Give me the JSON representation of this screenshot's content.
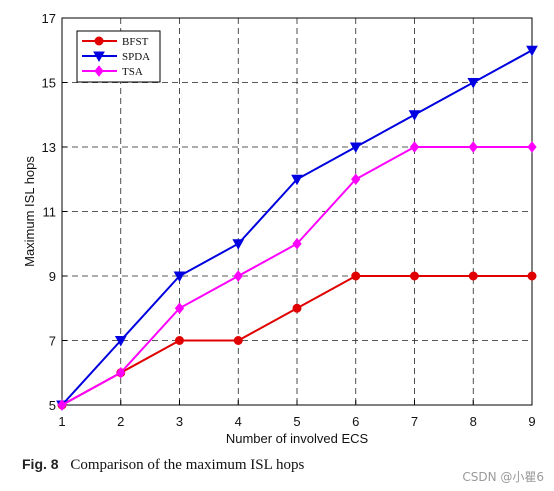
{
  "chart_data": {
    "type": "line",
    "x": [
      1,
      2,
      3,
      4,
      5,
      6,
      7,
      8,
      9
    ],
    "xlabel": "Number of involved ECS",
    "ylabel": "Maximum ISL hops",
    "xlim": [
      1,
      9
    ],
    "ylim": [
      5,
      17
    ],
    "xticks": [
      1,
      2,
      3,
      4,
      5,
      6,
      7,
      8,
      9
    ],
    "yticks": [
      5,
      7,
      9,
      11,
      13,
      15,
      17
    ],
    "grid": "dashed",
    "legend_position": "top-left",
    "series": [
      {
        "name": "BFST",
        "color": "#e00000",
        "marker": "circle",
        "values": [
          5,
          6,
          7,
          7,
          8,
          9,
          9,
          9,
          9
        ]
      },
      {
        "name": "SPDA",
        "color": "#0000e0",
        "marker": "triangle-down",
        "values": [
          5,
          7,
          9,
          10,
          12,
          13,
          14,
          15,
          16
        ]
      },
      {
        "name": "TSA",
        "color": "#ff00ff",
        "marker": "diamond",
        "values": [
          5,
          6,
          8,
          9,
          10,
          12,
          13,
          13,
          13
        ]
      }
    ]
  },
  "caption": {
    "label": "Fig. 8",
    "text": "Comparison of the maximum ISL hops"
  },
  "watermark": "CSDN @小瞿6"
}
